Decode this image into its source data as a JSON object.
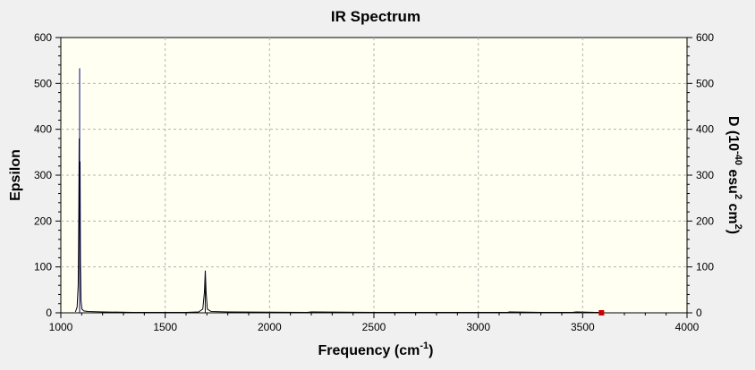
{
  "chart_data": {
    "type": "line",
    "title": "IR Spectrum",
    "xlabel": {
      "text": "Frequency (cm",
      "sup": "-1",
      "suffix": ")"
    },
    "ylabel_left": "Epsilon",
    "ylabel_right": {
      "parts": [
        {
          "t": "D (10",
          "sup": false
        },
        {
          "t": "-40",
          "sup": true
        },
        {
          "t": " esu",
          "sup": false
        },
        {
          "t": "2",
          "sup": true
        },
        {
          "t": " cm",
          "sup": false
        },
        {
          "t": "2",
          "sup": true
        },
        {
          "t": ")",
          "sup": false
        }
      ]
    },
    "xlim": [
      1000,
      4000
    ],
    "ylim": [
      0,
      600
    ],
    "xticks": [
      1000,
      1500,
      2000,
      2500,
      3000,
      3500,
      4000
    ],
    "yticks": [
      0,
      100,
      200,
      300,
      400,
      500,
      600
    ],
    "grid": true,
    "colors": {
      "plot_bg": "#fffff2",
      "curve": "#000000",
      "stick": "#00008b",
      "marker": "#cc0000",
      "grid": "#b4b4b4"
    },
    "series": [
      {
        "x": [
          1070,
          1078,
          1083,
          1086,
          1088,
          1090,
          1092,
          1094,
          1097,
          1101,
          1110,
          1130,
          1200,
          1345,
          1400,
          1600,
          1660,
          1680,
          1688,
          1692,
          1696,
          1702,
          1720,
          1800,
          2180,
          2200,
          2500,
          3000,
          3140,
          3150,
          3300,
          3450,
          3470,
          3560,
          3580,
          3600
        ],
        "y": [
          2,
          12,
          60,
          220,
          380,
          300,
          330,
          110,
          25,
          8,
          4,
          3,
          2,
          1,
          1,
          1,
          2,
          8,
          45,
          92,
          45,
          8,
          3,
          2,
          1,
          2,
          1,
          1,
          1,
          2,
          1,
          1,
          2,
          1,
          1,
          1
        ]
      }
    ],
    "sticks": [
      {
        "x": 1090,
        "y": 533
      },
      {
        "x": 1692,
        "y": 90
      }
    ],
    "markers": [
      {
        "x": 3590,
        "y": 0
      }
    ]
  }
}
